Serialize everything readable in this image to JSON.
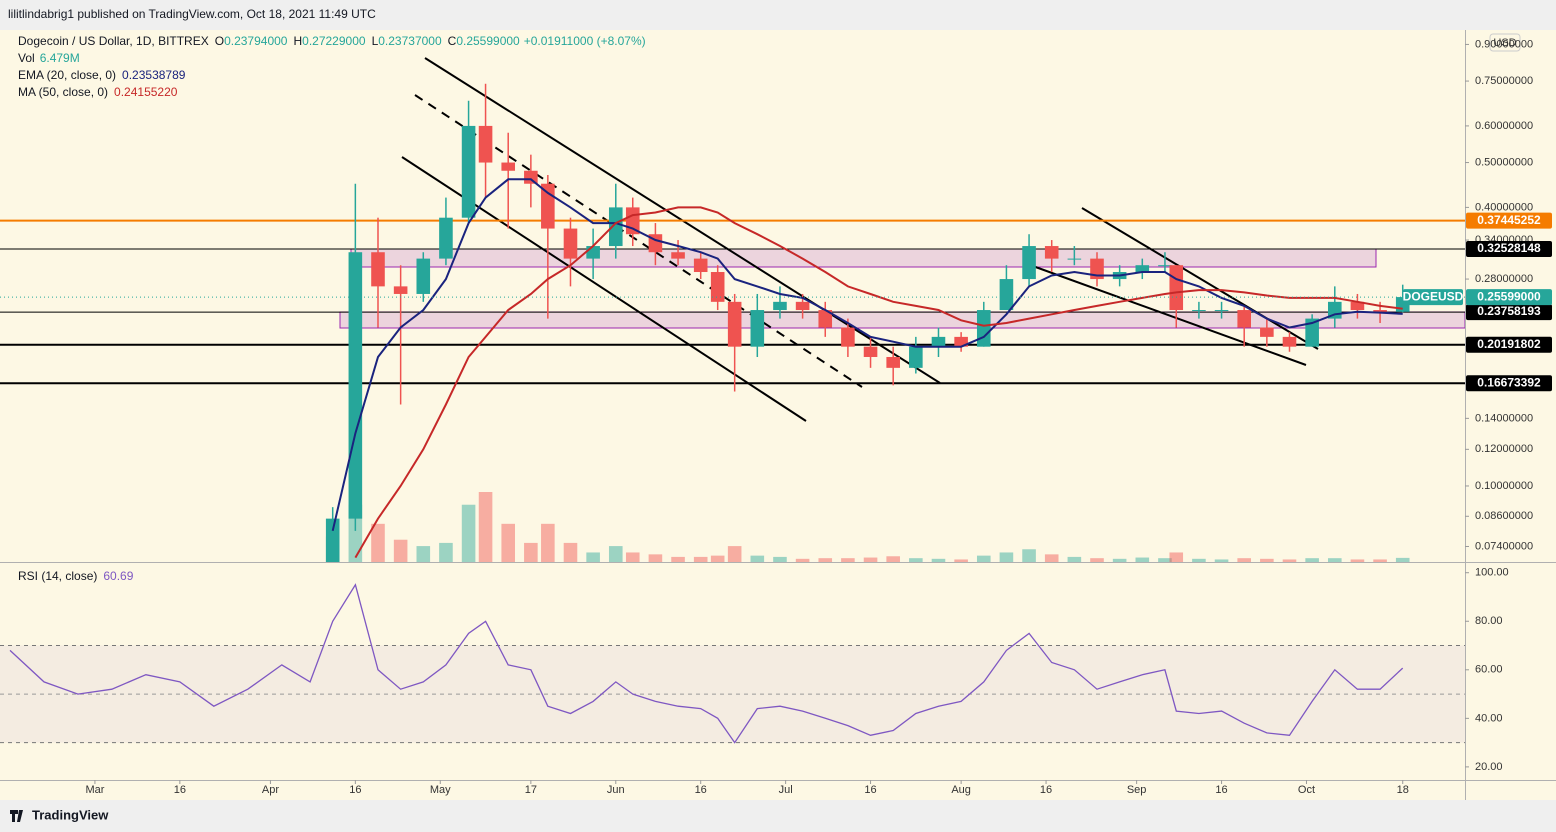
{
  "header": {
    "publisher": "lilitlindabrig1 published on TradingView.com, Oct 18, 2021 11:49 UTC"
  },
  "footer": {
    "brand": "TradingView"
  },
  "chart_data": {
    "type": "candlestick",
    "title": "Dogecoin / US Dollar, 1D, BITTREX",
    "ohlc": [
      {
        "key": "O",
        "text": "0.23794000"
      },
      {
        "key": "H",
        "text": "0.27229000"
      },
      {
        "key": "L",
        "text": "0.23737000"
      },
      {
        "key": "C",
        "text": "0.25599000"
      }
    ],
    "change": "+0.01911000 (+8.07%)",
    "currency": "USD",
    "log_scale": true,
    "grid": false,
    "up_color": "#26a69a",
    "down_color": "#ef5350",
    "xlim": [
      "2021-02-14",
      "2021-10-29"
    ],
    "xticks": [
      {
        "value": "2021-03-01",
        "label": "Mar"
      },
      {
        "value": "2021-03-16",
        "label": "16"
      },
      {
        "value": "2021-04-01",
        "label": "Apr"
      },
      {
        "value": "2021-04-16",
        "label": "16"
      },
      {
        "value": "2021-05-01",
        "label": "May"
      },
      {
        "value": "2021-05-17",
        "label": "17"
      },
      {
        "value": "2021-06-01",
        "label": "Jun"
      },
      {
        "value": "2021-06-16",
        "label": "16"
      },
      {
        "value": "2021-07-01",
        "label": "Jul"
      },
      {
        "value": "2021-07-16",
        "label": "16"
      },
      {
        "value": "2021-08-01",
        "label": "Aug"
      },
      {
        "value": "2021-08-16",
        "label": "16"
      },
      {
        "value": "2021-09-01",
        "label": "Sep"
      },
      {
        "value": "2021-09-16",
        "label": "16"
      },
      {
        "value": "2021-10-01",
        "label": "Oct"
      },
      {
        "value": "2021-10-18",
        "label": "18"
      }
    ],
    "ylim": [
      0.0685,
      0.967
    ],
    "yticks": [
      {
        "value": 0.9,
        "label": "0.90000000"
      },
      {
        "value": 0.75,
        "label": "0.75000000"
      },
      {
        "value": 0.6,
        "label": "0.60000000"
      },
      {
        "value": 0.5,
        "label": "0.50000000"
      },
      {
        "value": 0.4,
        "label": "0.40000000"
      },
      {
        "value": 0.34,
        "label": "0.34000000"
      },
      {
        "value": 0.28,
        "label": "0.28000000"
      },
      {
        "value": 0.14,
        "label": "0.14000000"
      },
      {
        "value": 0.12,
        "label": "0.12000000"
      },
      {
        "value": 0.1,
        "label": "0.10000000"
      },
      {
        "value": 0.086,
        "label": "0.08600000"
      },
      {
        "value": 0.074,
        "label": "0.07400000"
      }
    ],
    "hlines": [
      0.37445252,
      0.32528148,
      0.23758193,
      0.20191802,
      0.16673392
    ],
    "hline_colors": [
      "#f57c00",
      "#000000",
      "#000000",
      "#000000",
      "#000000"
    ],
    "last_price": {
      "name": "DOGEUSD",
      "value": 0.25599,
      "label": "0.25599000"
    },
    "x": [
      "2021-04-12",
      "2021-04-16",
      "2021-04-20",
      "2021-04-24",
      "2021-04-28",
      "2021-05-02",
      "2021-05-06",
      "2021-05-09",
      "2021-05-13",
      "2021-05-17",
      "2021-05-20",
      "2021-05-24",
      "2021-05-28",
      "2021-06-01",
      "2021-06-04",
      "2021-06-08",
      "2021-06-12",
      "2021-06-16",
      "2021-06-19",
      "2021-06-22",
      "2021-06-26",
      "2021-06-30",
      "2021-07-04",
      "2021-07-08",
      "2021-07-12",
      "2021-07-16",
      "2021-07-20",
      "2021-07-24",
      "2021-07-28",
      "2021-08-01",
      "2021-08-05",
      "2021-08-09",
      "2021-08-13",
      "2021-08-17",
      "2021-08-21",
      "2021-08-25",
      "2021-08-29",
      "2021-09-02",
      "2021-09-06",
      "2021-09-08",
      "2021-09-12",
      "2021-09-16",
      "2021-09-20",
      "2021-09-24",
      "2021-09-28",
      "2021-10-02",
      "2021-10-06",
      "2021-10-10",
      "2021-10-14",
      "2021-10-18"
    ],
    "open": [
      0.066,
      0.085,
      0.32,
      0.27,
      0.26,
      0.31,
      0.38,
      0.6,
      0.5,
      0.48,
      0.45,
      0.36,
      0.31,
      0.33,
      0.4,
      0.35,
      0.32,
      0.31,
      0.29,
      0.25,
      0.2,
      0.24,
      0.25,
      0.24,
      0.22,
      0.2,
      0.19,
      0.18,
      0.2,
      0.21,
      0.2,
      0.24,
      0.28,
      0.33,
      0.31,
      0.31,
      0.28,
      0.29,
      0.3,
      0.3,
      0.24,
      0.24,
      0.24,
      0.22,
      0.21,
      0.2,
      0.23,
      0.25,
      0.24,
      0.23794
    ],
    "high": [
      0.09,
      0.45,
      0.38,
      0.3,
      0.32,
      0.42,
      0.68,
      0.74,
      0.58,
      0.52,
      0.47,
      0.38,
      0.36,
      0.45,
      0.42,
      0.37,
      0.34,
      0.32,
      0.3,
      0.26,
      0.26,
      0.27,
      0.26,
      0.25,
      0.23,
      0.21,
      0.2,
      0.21,
      0.22,
      0.215,
      0.25,
      0.3,
      0.35,
      0.34,
      0.33,
      0.32,
      0.3,
      0.31,
      0.32,
      0.3,
      0.25,
      0.25,
      0.245,
      0.23,
      0.215,
      0.235,
      0.27,
      0.26,
      0.25,
      0.27229
    ],
    "low": [
      0.065,
      0.08,
      0.22,
      0.15,
      0.25,
      0.3,
      0.37,
      0.42,
      0.36,
      0.4,
      0.23,
      0.27,
      0.28,
      0.31,
      0.33,
      0.3,
      0.3,
      0.28,
      0.24,
      0.16,
      0.19,
      0.23,
      0.23,
      0.21,
      0.19,
      0.18,
      0.165,
      0.175,
      0.19,
      0.195,
      0.2,
      0.24,
      0.27,
      0.29,
      0.3,
      0.27,
      0.27,
      0.28,
      0.29,
      0.22,
      0.23,
      0.23,
      0.2,
      0.2,
      0.195,
      0.2,
      0.22,
      0.23,
      0.225,
      0.23737
    ],
    "close": [
      0.085,
      0.32,
      0.27,
      0.26,
      0.31,
      0.38,
      0.6,
      0.5,
      0.48,
      0.45,
      0.36,
      0.31,
      0.33,
      0.4,
      0.35,
      0.32,
      0.31,
      0.29,
      0.25,
      0.2,
      0.24,
      0.25,
      0.24,
      0.22,
      0.2,
      0.19,
      0.18,
      0.2,
      0.21,
      0.2,
      0.24,
      0.28,
      0.33,
      0.31,
      0.31,
      0.28,
      0.29,
      0.3,
      0.3,
      0.24,
      0.24,
      0.24,
      0.22,
      0.21,
      0.2,
      0.23,
      0.25,
      0.24,
      0.238,
      0.25599
    ],
    "volume_name": "Vol",
    "volume_label": "6.479M",
    "volume": [
      40,
      90,
      60,
      35,
      25,
      30,
      90,
      110,
      60,
      30,
      60,
      30,
      15,
      25,
      15,
      12,
      8,
      8,
      10,
      25,
      10,
      8,
      5,
      6,
      6,
      7,
      9,
      6,
      5,
      4,
      10,
      15,
      20,
      12,
      8,
      6,
      5,
      7,
      6,
      15,
      5,
      4,
      6,
      5,
      4,
      6,
      6,
      4,
      4,
      6.479
    ],
    "indicators": [
      {
        "name": "EMA (20, close, 0)",
        "value_label": "0.23538789",
        "color": "#1a237e",
        "values": [
          0.08,
          0.13,
          0.19,
          0.22,
          0.24,
          0.28,
          0.37,
          0.42,
          0.46,
          0.46,
          0.43,
          0.4,
          0.37,
          0.37,
          0.36,
          0.34,
          0.33,
          0.32,
          0.31,
          0.28,
          0.27,
          0.26,
          0.255,
          0.24,
          0.225,
          0.21,
          0.205,
          0.2,
          0.2,
          0.2,
          0.21,
          0.235,
          0.27,
          0.285,
          0.29,
          0.285,
          0.285,
          0.29,
          0.29,
          0.28,
          0.27,
          0.255,
          0.245,
          0.23,
          0.22,
          0.225,
          0.235,
          0.238,
          0.237,
          0.23538789
        ]
      },
      {
        "name": "MA (50, close, 0)",
        "value_label": "0.24155220",
        "color": "#c62828",
        "values": [
          null,
          0.07,
          0.085,
          0.1,
          0.12,
          0.15,
          0.19,
          0.21,
          0.24,
          0.26,
          0.28,
          0.3,
          0.33,
          0.37,
          0.385,
          0.39,
          0.4,
          0.4,
          0.39,
          0.37,
          0.35,
          0.33,
          0.31,
          0.29,
          0.27,
          0.26,
          0.25,
          0.245,
          0.24,
          0.228,
          0.222,
          0.225,
          0.23,
          0.235,
          0.24,
          0.245,
          0.25,
          0.255,
          0.26,
          0.262,
          0.265,
          0.265,
          0.262,
          0.258,
          0.255,
          0.255,
          0.255,
          0.25,
          0.245,
          0.2415522
        ]
      }
    ],
    "rsi": {
      "name": "RSI (14, close)",
      "value_label": "60.69",
      "color": "#7e57c2",
      "ylim": [
        14.6,
        104
      ],
      "yticks": [
        {
          "value": 100,
          "label": "100.00"
        },
        {
          "value": 80,
          "label": "80.00"
        },
        {
          "value": 60,
          "label": "60.00"
        },
        {
          "value": 40,
          "label": "40.00"
        },
        {
          "value": 20,
          "label": "20.00"
        }
      ],
      "bands": [
        30,
        70
      ],
      "midline": 50,
      "x": [
        "2021-02-14",
        "2021-02-20",
        "2021-02-26",
        "2021-03-04",
        "2021-03-10",
        "2021-03-16",
        "2021-03-22",
        "2021-03-28",
        "2021-04-03",
        "2021-04-08",
        "2021-04-12",
        "2021-04-16",
        "2021-04-20",
        "2021-04-24",
        "2021-04-28",
        "2021-05-02",
        "2021-05-06",
        "2021-05-09",
        "2021-05-13",
        "2021-05-17",
        "2021-05-20",
        "2021-05-24",
        "2021-05-28",
        "2021-06-01",
        "2021-06-04",
        "2021-06-08",
        "2021-06-12",
        "2021-06-16",
        "2021-06-19",
        "2021-06-22",
        "2021-06-26",
        "2021-06-30",
        "2021-07-04",
        "2021-07-08",
        "2021-07-12",
        "2021-07-16",
        "2021-07-20",
        "2021-07-24",
        "2021-07-28",
        "2021-08-01",
        "2021-08-05",
        "2021-08-09",
        "2021-08-13",
        "2021-08-17",
        "2021-08-21",
        "2021-08-25",
        "2021-08-29",
        "2021-09-02",
        "2021-09-06",
        "2021-09-08",
        "2021-09-12",
        "2021-09-16",
        "2021-09-20",
        "2021-09-24",
        "2021-09-28",
        "2021-10-02",
        "2021-10-06",
        "2021-10-10",
        "2021-10-14",
        "2021-10-18"
      ],
      "values": [
        68,
        55,
        50,
        52,
        58,
        55,
        45,
        52,
        62,
        55,
        80,
        95,
        60,
        52,
        55,
        62,
        75,
        80,
        62,
        60,
        45,
        42,
        47,
        55,
        50,
        47,
        45,
        44,
        40,
        30,
        44,
        45,
        43,
        40,
        37,
        33,
        35,
        42,
        45,
        47,
        55,
        68,
        75,
        63,
        60,
        52,
        55,
        58,
        60,
        43,
        42,
        43,
        38,
        34,
        33,
        47,
        60,
        52,
        52,
        60.69
      ]
    }
  }
}
